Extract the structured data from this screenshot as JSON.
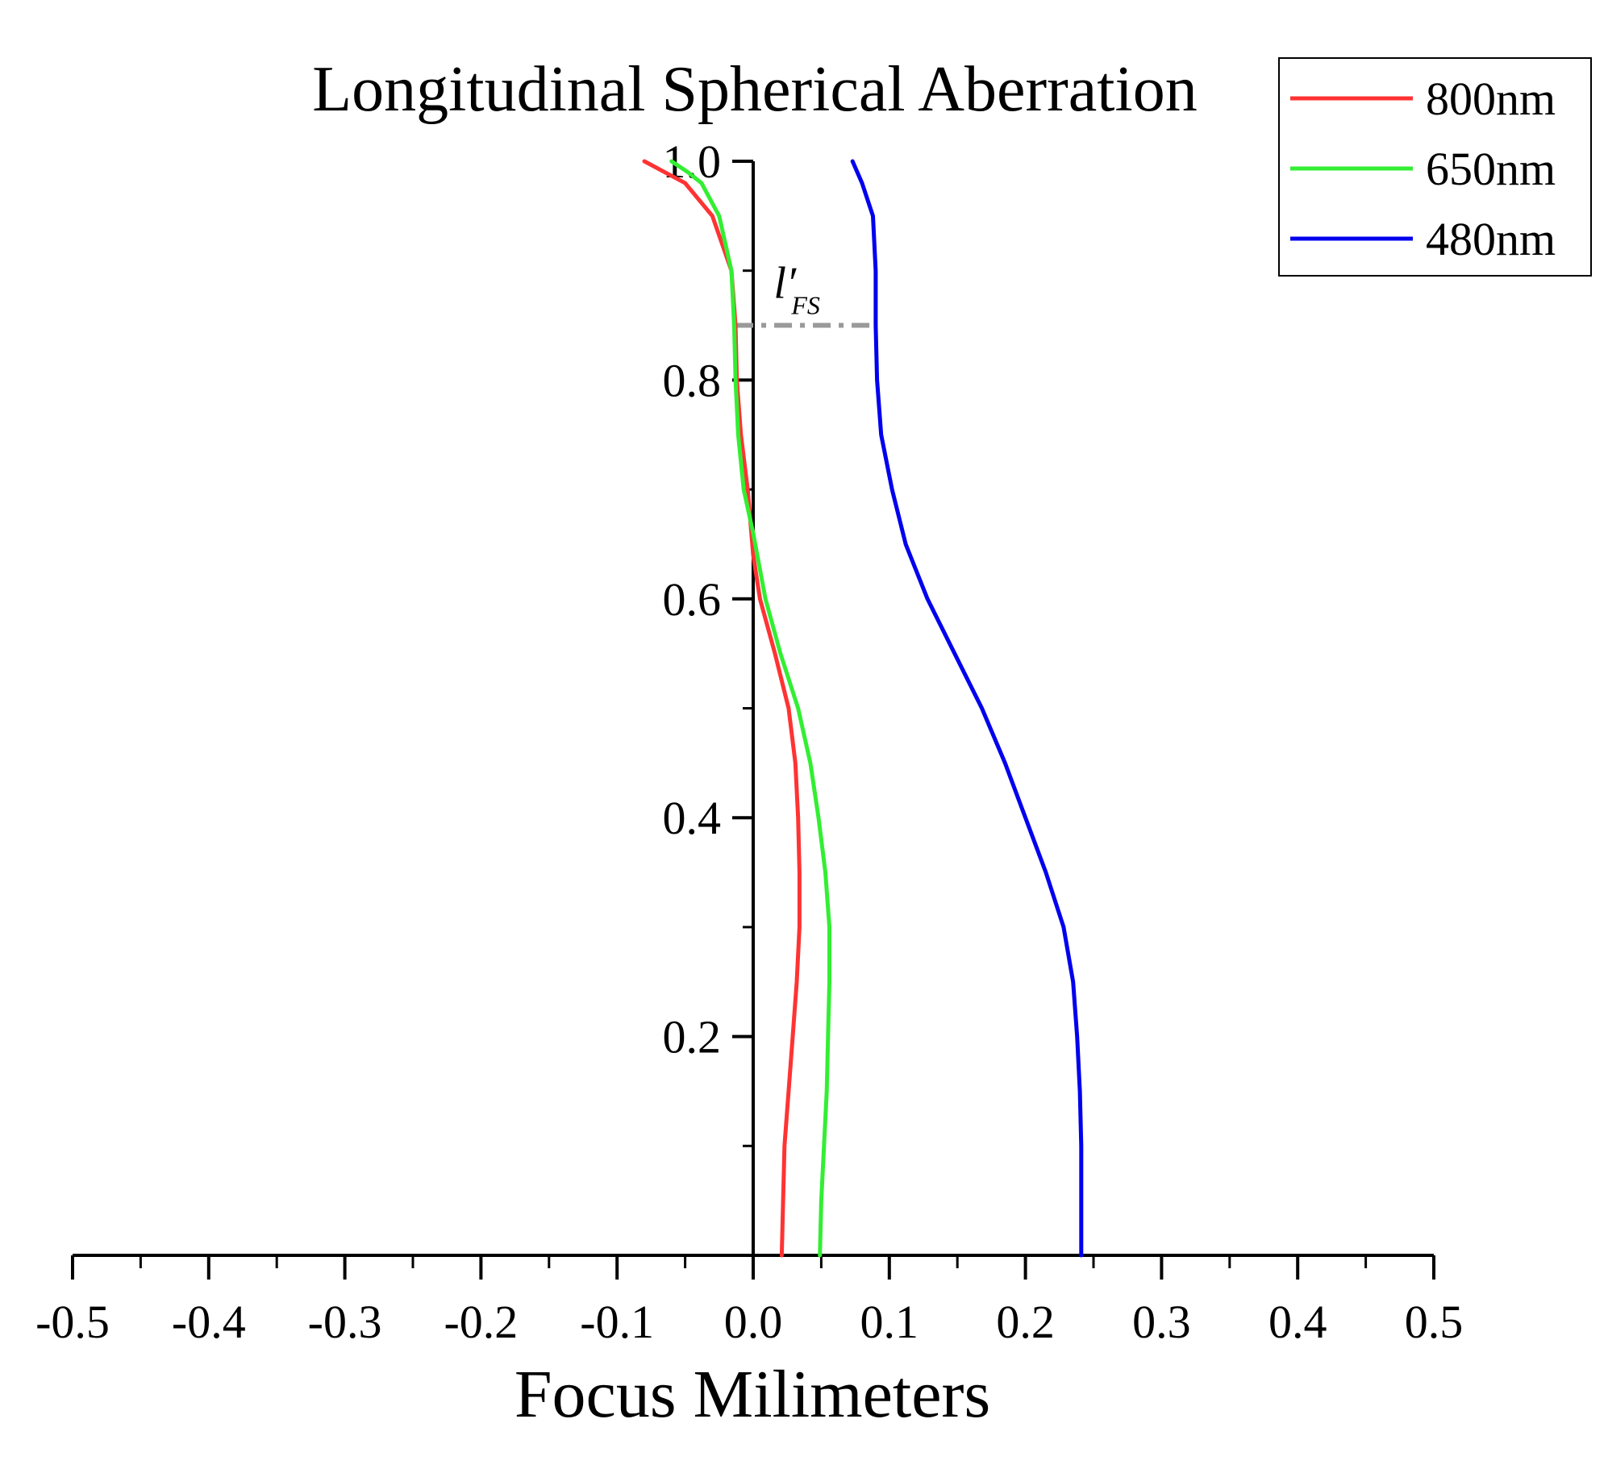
{
  "chart_data": {
    "type": "line",
    "title": "Longitudinal Spherical Aberration",
    "xlabel": "Focus Milimeters",
    "ylabel": "",
    "xlim": [
      -0.5,
      0.5
    ],
    "ylim": [
      0,
      1.0
    ],
    "x_ticks": [
      -0.5,
      -0.4,
      -0.3,
      -0.2,
      -0.1,
      0.0,
      0.1,
      0.2,
      0.3,
      0.4,
      0.5
    ],
    "x_tick_labels": [
      "-0.5",
      "-0.4",
      "-0.3",
      "-0.2",
      "-0.1",
      "0.0",
      "0.1",
      "0.2",
      "0.3",
      "0.4",
      "0.5"
    ],
    "y_ticks": [
      0.2,
      0.4,
      0.6,
      0.8,
      1.0
    ],
    "y_tick_labels": [
      "0.2",
      "0.4",
      "0.6",
      "0.8",
      "1.0"
    ],
    "y_minor_ticks": [
      0.1,
      0.3,
      0.5,
      0.7,
      0.9
    ],
    "x_minor_ticks": [
      -0.45,
      -0.35,
      -0.25,
      -0.15,
      -0.05,
      0.05,
      0.15,
      0.25,
      0.35,
      0.45
    ],
    "grid": false,
    "legend_position": "top-right",
    "series": [
      {
        "name": "800nm",
        "color": "#ff3333",
        "points": [
          [
            0.021,
            0.0
          ],
          [
            0.022,
            0.05
          ],
          [
            0.023,
            0.1
          ],
          [
            0.026,
            0.15
          ],
          [
            0.029,
            0.2
          ],
          [
            0.032,
            0.25
          ],
          [
            0.034,
            0.3
          ],
          [
            0.034,
            0.35
          ],
          [
            0.033,
            0.4
          ],
          [
            0.031,
            0.45
          ],
          [
            0.026,
            0.5
          ],
          [
            0.016,
            0.55
          ],
          [
            0.005,
            0.6
          ],
          [
            0.0,
            0.64
          ],
          [
            -0.004,
            0.7
          ],
          [
            -0.009,
            0.75
          ],
          [
            -0.012,
            0.8
          ],
          [
            -0.013,
            0.85
          ],
          [
            -0.016,
            0.9
          ],
          [
            -0.03,
            0.95
          ],
          [
            -0.05,
            0.98
          ],
          [
            -0.065,
            0.99
          ],
          [
            -0.08,
            1.0
          ]
        ]
      },
      {
        "name": "650nm",
        "color": "#33ee33",
        "points": [
          [
            0.049,
            0.0
          ],
          [
            0.05,
            0.05
          ],
          [
            0.052,
            0.1
          ],
          [
            0.054,
            0.15
          ],
          [
            0.055,
            0.2
          ],
          [
            0.056,
            0.25
          ],
          [
            0.056,
            0.3
          ],
          [
            0.053,
            0.35
          ],
          [
            0.048,
            0.4
          ],
          [
            0.042,
            0.45
          ],
          [
            0.033,
            0.5
          ],
          [
            0.02,
            0.55
          ],
          [
            0.009,
            0.6
          ],
          [
            0.0,
            0.66
          ],
          [
            -0.007,
            0.7
          ],
          [
            -0.011,
            0.75
          ],
          [
            -0.013,
            0.8
          ],
          [
            -0.014,
            0.85
          ],
          [
            -0.016,
            0.9
          ],
          [
            -0.025,
            0.95
          ],
          [
            -0.038,
            0.98
          ],
          [
            -0.048,
            0.99
          ],
          [
            -0.06,
            1.0
          ]
        ]
      },
      {
        "name": "480nm",
        "color": "#0000ee",
        "points": [
          [
            0.241,
            0.0
          ],
          [
            0.241,
            0.05
          ],
          [
            0.241,
            0.1
          ],
          [
            0.24,
            0.15
          ],
          [
            0.238,
            0.2
          ],
          [
            0.235,
            0.25
          ],
          [
            0.228,
            0.3
          ],
          [
            0.215,
            0.35
          ],
          [
            0.2,
            0.4
          ],
          [
            0.185,
            0.45
          ],
          [
            0.168,
            0.5
          ],
          [
            0.148,
            0.55
          ],
          [
            0.128,
            0.6
          ],
          [
            0.112,
            0.65
          ],
          [
            0.102,
            0.7
          ],
          [
            0.094,
            0.75
          ],
          [
            0.091,
            0.8
          ],
          [
            0.09,
            0.85
          ],
          [
            0.09,
            0.9
          ],
          [
            0.088,
            0.95
          ],
          [
            0.08,
            0.98
          ],
          [
            0.073,
            1.0
          ]
        ]
      }
    ],
    "annotations": [
      {
        "label": "l′",
        "subscript": "FS",
        "x": 0.015,
        "y": 0.875
      }
    ],
    "reference_lines": [
      {
        "style": "dash-dot",
        "color": "#999999",
        "x_start": -0.013,
        "x_end": 0.09,
        "y": 0.85
      }
    ]
  }
}
